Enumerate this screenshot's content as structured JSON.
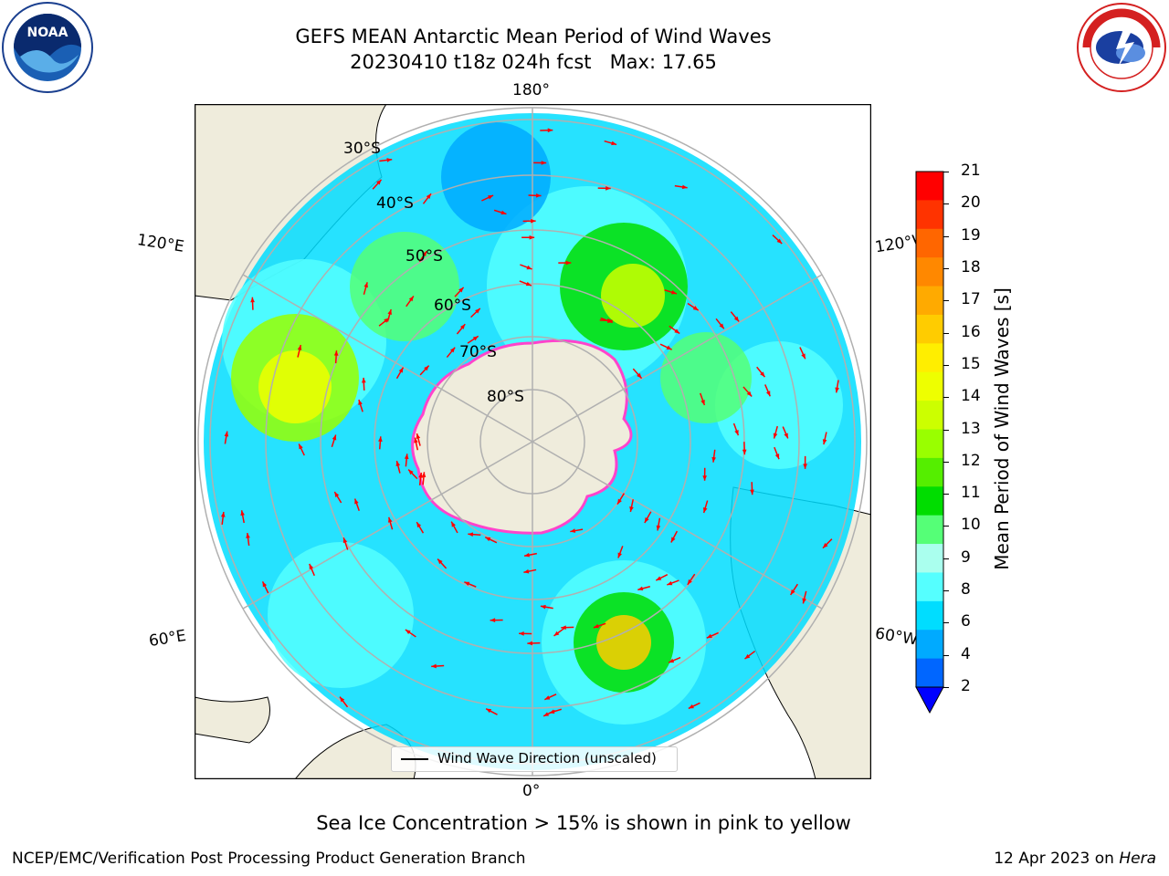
{
  "title": {
    "line1": "GEFS MEAN Antarctic Mean Period of Wind Waves",
    "line2": "20230410 t18z 024h fcst   Max: 17.65"
  },
  "map": {
    "projection": "south-polar-stereographic",
    "lon_labels": {
      "top": "180°",
      "left_upper": "120°E",
      "right_upper": "120°W",
      "left_lower": "60°E",
      "right_lower": "60°W",
      "bottom": "0°"
    },
    "lat_labels": [
      "30°S",
      "40°S",
      "50°S",
      "60°S",
      "70°S",
      "80°S"
    ],
    "colors": {
      "land": "#efecdc",
      "ocean_nodata": "#ffffff",
      "grid": "#b0b0b0",
      "arrow": "#ff0000",
      "sea_ice_edge": "#ff44cc"
    }
  },
  "legend": {
    "label": "Wind Wave Direction (unscaled)"
  },
  "colorbar": {
    "label": "Mean Period of Wind Waves [s]",
    "ticks": [
      "21",
      "20",
      "19",
      "18",
      "17",
      "16",
      "15",
      "14",
      "13",
      "12",
      "11",
      "10",
      "9",
      "8",
      "6",
      "4",
      "2"
    ],
    "colors": [
      "#ff0000",
      "#ff3300",
      "#ff6600",
      "#ff8800",
      "#ffaa00",
      "#ffcc00",
      "#ffee00",
      "#eeff00",
      "#ccff00",
      "#99ff00",
      "#55ee00",
      "#00dd00",
      "#55ff77",
      "#aaffee",
      "#55ffff",
      "#00ddff",
      "#00aaff",
      "#0066ff"
    ],
    "extend_below_color": "#0000ff"
  },
  "note": "Sea Ice Concentration > 15% is shown in pink to yellow",
  "footer": {
    "left": "NCEP/EMC/Verification Post Processing Product Generation Branch",
    "right_date": "12 Apr 2023 on",
    "right_host": "Hera"
  },
  "logos": {
    "left": "NOAA",
    "right": "NATIONAL WEATHER SERVICE"
  },
  "chart_data": {
    "type": "heatmap",
    "title": "GEFS MEAN Antarctic Mean Period of Wind Waves",
    "subtitle": "20230410 t18z 024h fcst   Max: 17.65",
    "variable": "Mean Period of Wind Waves [s]",
    "max_value": 17.65,
    "color_levels": [
      2,
      4,
      6,
      8,
      9,
      10,
      11,
      12,
      13,
      14,
      15,
      16,
      17,
      18,
      19,
      20,
      21
    ],
    "overlay": "Wind Wave Direction (unscaled)"
  }
}
